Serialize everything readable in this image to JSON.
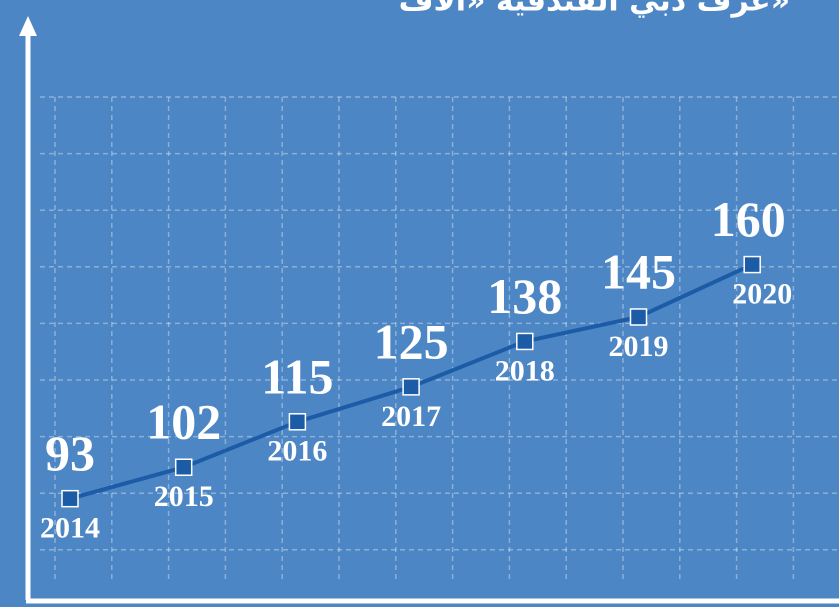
{
  "chart_data": {
    "type": "line",
    "title": "غرف دبي الفندقية «آلاف»",
    "categories": [
      "2014",
      "2015",
      "2016",
      "2017",
      "2018",
      "2019",
      "2020"
    ],
    "series": [
      {
        "color": "#1c5ba6",
        "values": [
          93,
          102,
          115,
          125,
          138,
          145,
          160
        ]
      }
    ],
    "ylim": [
      64,
      230
    ],
    "grid": true
  }
}
